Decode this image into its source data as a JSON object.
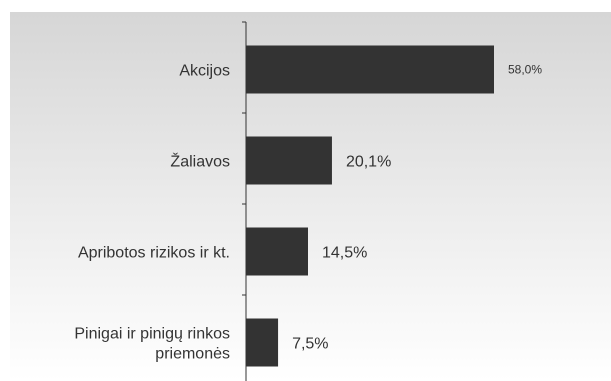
{
  "chart_data": {
    "type": "bar",
    "orientation": "horizontal",
    "categories": [
      [
        "Akcijos"
      ],
      [
        "Žaliavos"
      ],
      [
        "Apribotos rizikos ir kt."
      ],
      [
        "Pinigai ir pinigų rinkos",
        "priemonės"
      ]
    ],
    "values": [
      58.0,
      20.1,
      14.5,
      7.5
    ],
    "data_labels": [
      "58,0%",
      "20,1%",
      "14,5%",
      "7,5%"
    ],
    "unit": "%",
    "xlim": [
      0,
      70
    ],
    "grid": false,
    "legend": "none",
    "bar_color": "#333333",
    "background_gradient": [
      "#d6d6d6",
      "#ffffff"
    ]
  }
}
